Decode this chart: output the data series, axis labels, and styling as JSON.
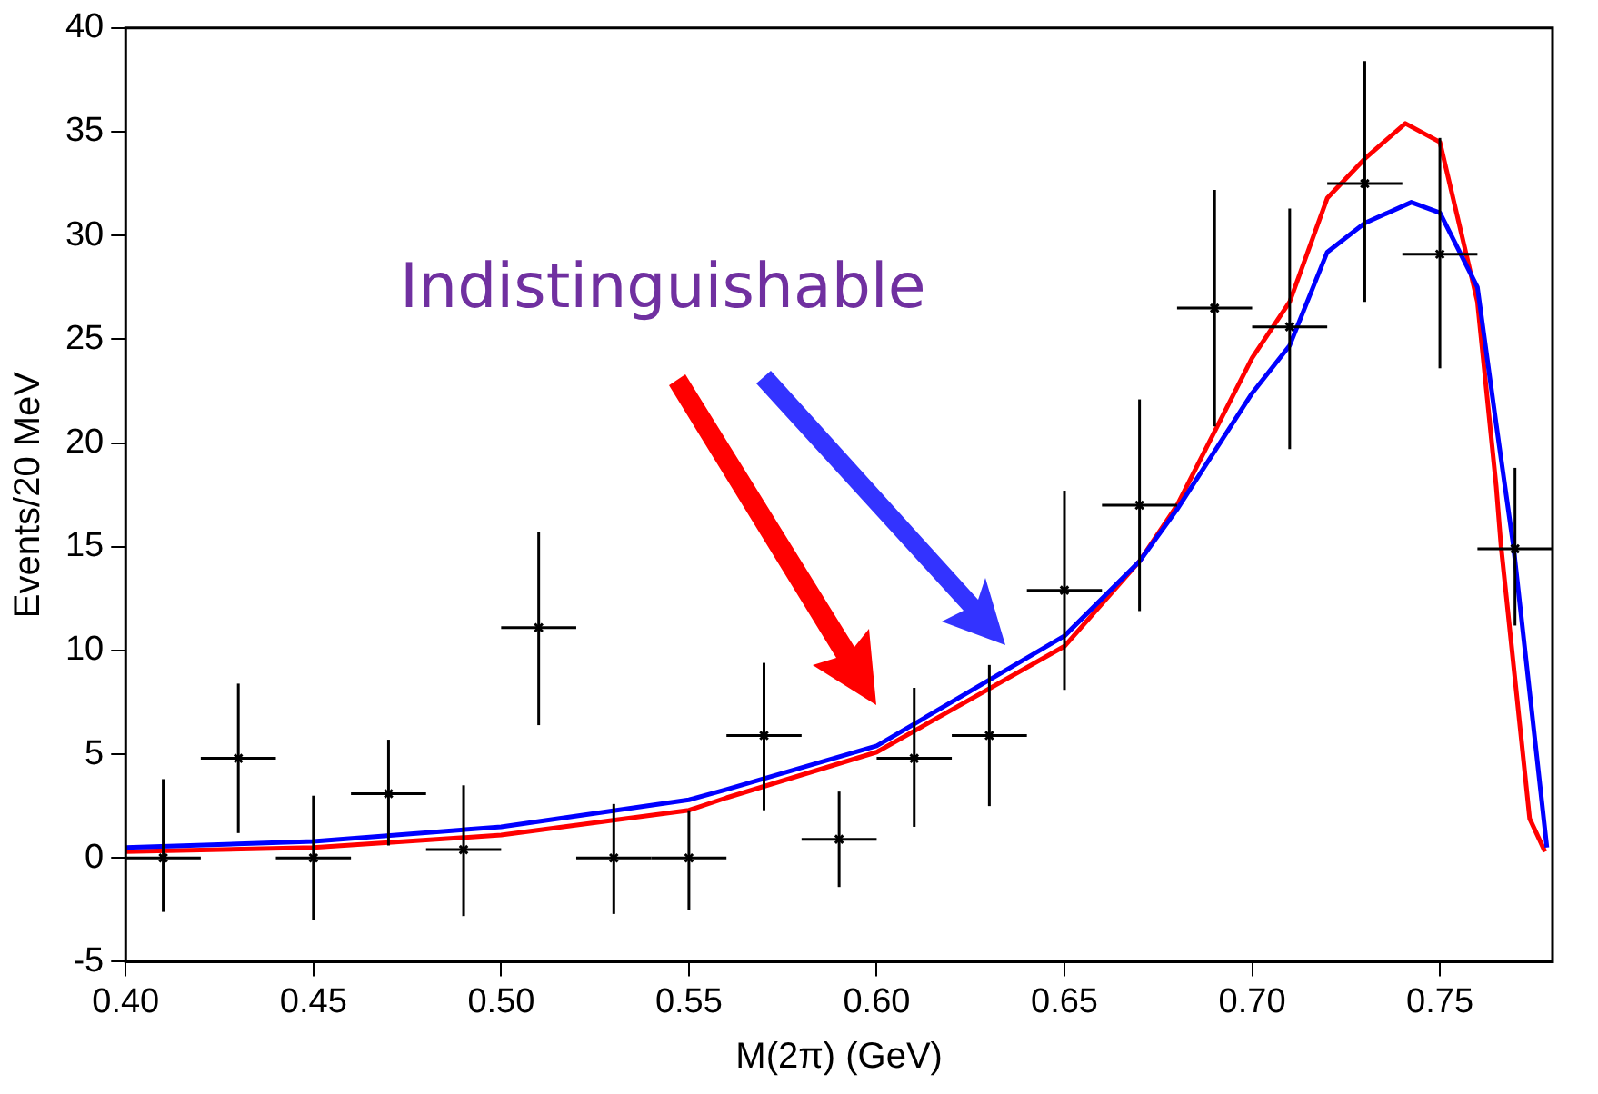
{
  "chart_data": {
    "type": "scatter",
    "xlabel": "M(2π) (GeV)",
    "ylabel": "Events/20 MeV",
    "annotations": [
      "Indistinguishable"
    ],
    "xlim": [
      0.4,
      0.78
    ],
    "ylim": [
      -5,
      40
    ],
    "xticks": [
      {
        "value": 0.4,
        "label": "0.40"
      },
      {
        "value": 0.45,
        "label": "0.45"
      },
      {
        "value": 0.5,
        "label": "0.50"
      },
      {
        "value": 0.55,
        "label": "0.55"
      },
      {
        "value": 0.6,
        "label": "0.60"
      },
      {
        "value": 0.65,
        "label": "0.65"
      },
      {
        "value": 0.7,
        "label": "0.70"
      },
      {
        "value": 0.75,
        "label": "0.75"
      }
    ],
    "yticks": [
      -5,
      0,
      5,
      10,
      15,
      20,
      25,
      30,
      35,
      40
    ],
    "legend": false,
    "marker": "none",
    "series": [
      {
        "type": "scatter",
        "color": "#000000",
        "marker": "cross",
        "x": [
          0.41,
          0.43,
          0.45,
          0.47,
          0.49,
          0.51,
          0.53,
          0.55,
          0.57,
          0.59,
          0.61,
          0.63,
          0.65,
          0.67,
          0.69,
          0.71,
          0.73,
          0.75,
          0.77
        ],
        "values": [
          0,
          4.8,
          0,
          3.1,
          0.4,
          11.1,
          0,
          0,
          5.9,
          0.9,
          4.8,
          5.9,
          12.9,
          17.0,
          26.5,
          25.6,
          32.5,
          29.1,
          14.9
        ],
        "errors": [
          [
            -2.6,
            3.8
          ],
          [
            1.2,
            8.4
          ],
          [
            -3.0,
            3.0
          ],
          [
            0.6,
            5.7
          ],
          [
            -2.8,
            3.5
          ],
          [
            6.4,
            15.7
          ],
          [
            -2.7,
            2.6
          ],
          [
            -2.5,
            2.3
          ],
          [
            2.3,
            9.4
          ],
          [
            -1.4,
            3.2
          ],
          [
            1.5,
            8.2
          ],
          [
            2.5,
            9.3
          ],
          [
            8.1,
            17.7
          ],
          [
            11.9,
            22.1
          ],
          [
            20.8,
            32.2
          ],
          [
            19.7,
            31.3
          ],
          [
            26.8,
            38.4
          ],
          [
            23.6,
            34.7
          ],
          [
            11.2,
            18.8
          ]
        ],
        "xerrors": [
          0.01,
          0.01,
          0.01,
          0.01,
          0.01,
          0.01,
          0.01,
          0.01,
          0.01,
          0.01,
          0.01,
          0.01,
          0.01,
          0.01,
          0.01,
          0.01,
          0.01,
          0.01,
          0.01
        ]
      },
      {
        "type": "line",
        "color": "#0000ff",
        "x": [
          0.4,
          0.45,
          0.5,
          0.55,
          0.56,
          0.6,
          0.65,
          0.67,
          0.68,
          0.7,
          0.71,
          0.72,
          0.73,
          0.7424,
          0.75,
          0.76,
          0.765,
          0.7696,
          0.7785
        ],
        "values": [
          0.5,
          0.8,
          1.5,
          2.8,
          3.3,
          5.4,
          10.7,
          14.3,
          16.8,
          22.4,
          24.7,
          29.2,
          30.6,
          31.6,
          31.1,
          27.5,
          20.9,
          15.0,
          0.5
        ]
      },
      {
        "type": "line",
        "color": "#ff0000",
        "x": [
          0.4,
          0.45,
          0.5,
          0.55,
          0.56,
          0.6,
          0.65,
          0.67,
          0.68,
          0.7,
          0.71,
          0.72,
          0.73,
          0.7408,
          0.75,
          0.76,
          0.765,
          0.7663,
          0.7739,
          0.778
        ],
        "values": [
          0.3,
          0.5,
          1.1,
          2.3,
          2.9,
          5.1,
          10.2,
          14.3,
          17.0,
          24.1,
          26.8,
          31.8,
          33.7,
          35.4,
          34.5,
          26.8,
          17.9,
          15.0,
          1.9,
          0.3
        ]
      }
    ]
  }
}
